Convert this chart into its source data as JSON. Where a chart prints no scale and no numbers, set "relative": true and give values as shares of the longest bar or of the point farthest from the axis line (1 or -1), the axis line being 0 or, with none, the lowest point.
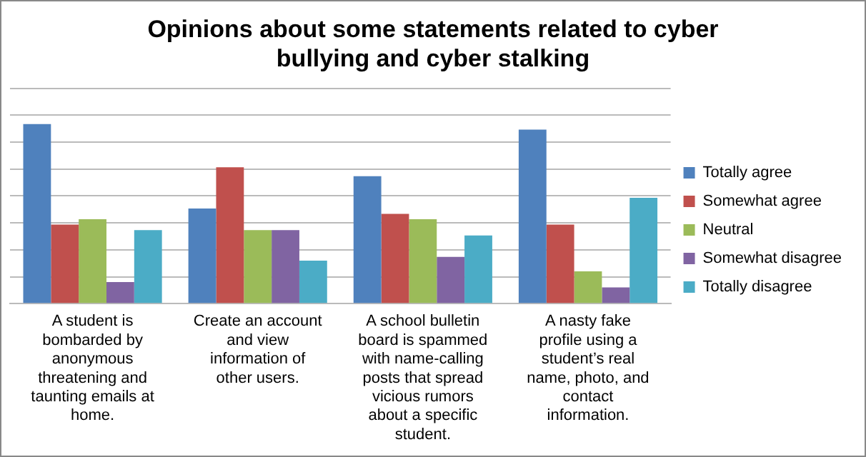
{
  "chart_data": {
    "type": "bar",
    "title": "Opinions about some statements related to cyber bullying and cyber stalking",
    "relative": true,
    "grid": "y",
    "legend": "right",
    "categories": [
      "A student is bombarded by anonymous threatening and taunting emails at home.",
      "Create an account and view information of other users.",
      "A school bulletin board is spammed with name-calling posts that spread vicious rumors about a specific student.",
      "A nasty fake profile using a student’s real name, photo, and contact information."
    ],
    "series": [
      {
        "name": "Totally agree",
        "color": "#4f81bd",
        "values": [
          1,
          0.53,
          0.71,
          0.97
        ]
      },
      {
        "name": "Somewhat agree",
        "color": "#c0504d",
        "values": [
          0.44,
          0.76,
          0.5,
          0.44
        ]
      },
      {
        "name": "Neutral",
        "color": "#9bbb59",
        "values": [
          0.47,
          0.41,
          0.47,
          0.18
        ]
      },
      {
        "name": "Somewhat disagree",
        "color": "#8064a2",
        "values": [
          0.12,
          0.41,
          0.26,
          0.09
        ]
      },
      {
        "name": "Totally disagree",
        "color": "#4bacc6",
        "values": [
          0.41,
          0.24,
          0.38,
          0.59
        ]
      }
    ]
  }
}
